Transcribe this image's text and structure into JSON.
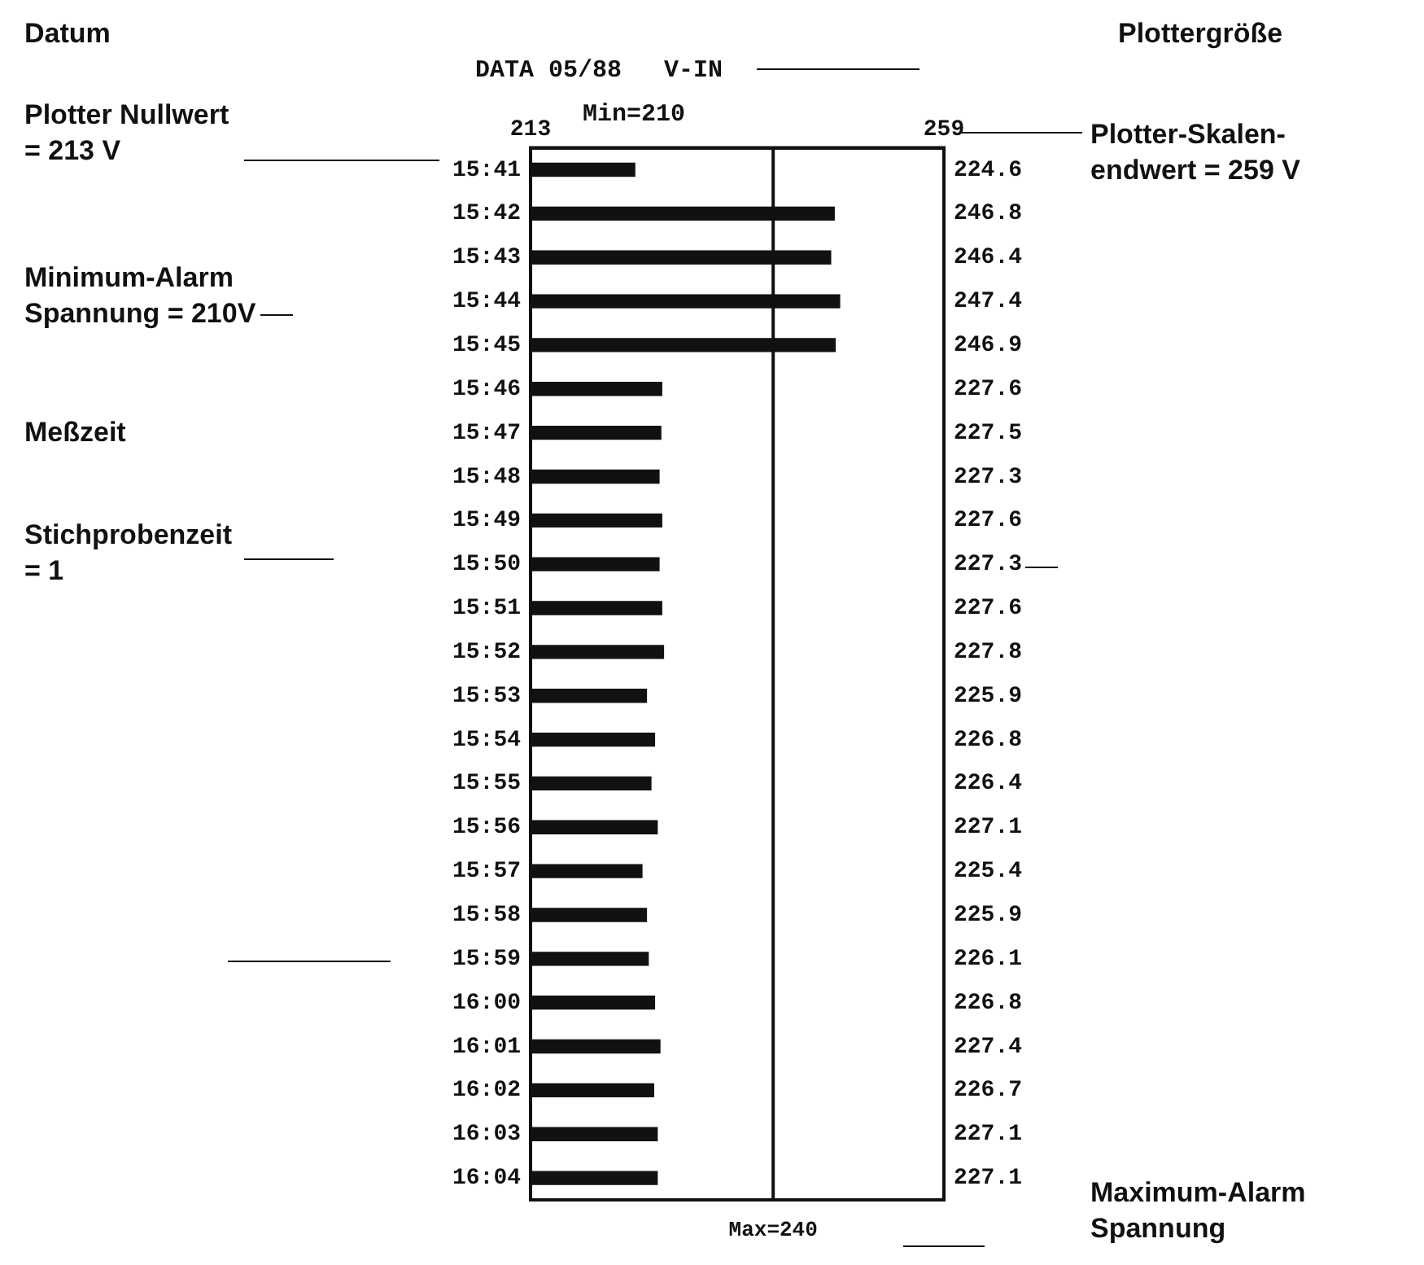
{
  "chart_data": {
    "type": "bar",
    "orientation": "horizontal",
    "categories": [
      "15:41",
      "15:42",
      "15:43",
      "15:44",
      "15:45",
      "15:46",
      "15:47",
      "15:48",
      "15:49",
      "15:50",
      "15:51",
      "15:52",
      "15:53",
      "15:54",
      "15:55",
      "15:56",
      "15:57",
      "15:58",
      "15:59",
      "16:00",
      "16:01",
      "16:02",
      "16:03",
      "16:04"
    ],
    "values": [
      224.6,
      246.8,
      246.4,
      247.4,
      246.9,
      227.6,
      227.5,
      227.3,
      227.6,
      227.3,
      227.6,
      227.8,
      225.9,
      226.8,
      226.4,
      227.1,
      225.4,
      225.9,
      226.1,
      226.8,
      227.4,
      226.7,
      227.1,
      227.1
    ],
    "color": "#111111",
    "xlim": [
      213,
      259
    ],
    "xticks": [
      213,
      259
    ],
    "data_labels": true,
    "grid": false,
    "legend": false,
    "ref_lines": [
      {
        "axis": "x",
        "value": 240,
        "label": "Max=240",
        "color": "#111111"
      }
    ],
    "annotations": [
      "Datum",
      "Plottergröße",
      "Plotter Nullwert\n= 213 V",
      "Plotter-Skalen-\nendwert = 259 V",
      "Minimum-Alarm\nSpannung = 210V",
      "Meßzeit",
      "Stichprobenzeit\n= 1",
      "Maximum-Alarm\nSpannung",
      "DATA 05/88",
      "V-IN",
      "Min=210"
    ]
  }
}
